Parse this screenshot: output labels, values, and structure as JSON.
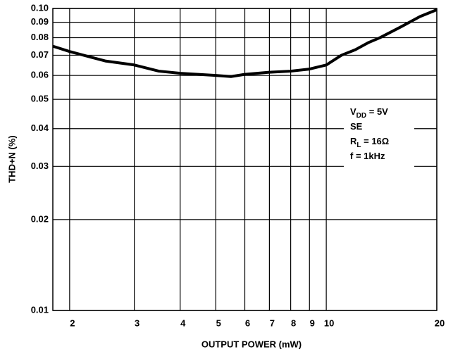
{
  "chart_data": {
    "type": "line",
    "x_label": "OUTPUT POWER (mW)",
    "y_label": "THD+N (%)",
    "xscale": "log",
    "yscale": "log",
    "grid": true,
    "xlim": [
      1.8,
      20
    ],
    "ylim": [
      0.01,
      0.1
    ],
    "xticks": [
      2,
      3,
      4,
      5,
      6,
      7,
      8,
      9,
      10,
      20
    ],
    "yticks": [
      0.01,
      0.02,
      0.03,
      0.04,
      0.05,
      0.06,
      0.07,
      0.08,
      0.09,
      {
        "value": 0.1,
        "label": "0.10"
      }
    ],
    "x": [
      1.8,
      2,
      2.5,
      3,
      3.5,
      4,
      5,
      5.5,
      6,
      7,
      8,
      9,
      10,
      11,
      12,
      13,
      14,
      16,
      18,
      20
    ],
    "series": [
      {
        "color": "#000000",
        "values": [
          0.075,
          0.072,
          0.067,
          0.065,
          0.062,
          0.061,
          0.06,
          0.0595,
          0.0605,
          0.0615,
          0.062,
          0.063,
          0.065,
          0.07,
          0.073,
          0.077,
          0.08,
          0.087,
          0.094,
          0.099
        ]
      }
    ],
    "annotations": [
      {
        "base": "V",
        "sub": "DD",
        "after": " = 5V"
      },
      {
        "base": "SE"
      },
      {
        "base": "R",
        "sub": "L",
        "after": " = 16Ω"
      },
      {
        "base": "f = 1kHz"
      }
    ]
  }
}
